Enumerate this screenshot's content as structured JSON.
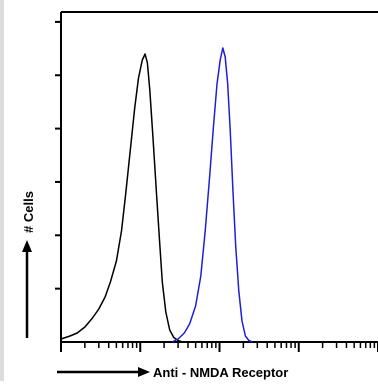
{
  "chart_data": {
    "type": "line",
    "title": "",
    "xlabel": "Anti - NMDA  Receptor",
    "ylabel": "# Cells",
    "xscale": "log",
    "xlim": [
      1,
      10000
    ],
    "ylim": [
      0,
      1
    ],
    "grid": false,
    "legend": "none",
    "series": [
      {
        "color": "#000000",
        "x": [
          1.0,
          1.3,
          1.6,
          2.0,
          2.5,
          3.0,
          3.6,
          4.2,
          5.0,
          5.8,
          6.6,
          7.5,
          8.5,
          9.5,
          10.6,
          11.5,
          12.3,
          13.2,
          14.5,
          16.0,
          17.5,
          19.0,
          21.0,
          23.5,
          26.5,
          30.0,
          34.0,
          38.0,
          42.0
        ],
        "y": [
          0.01,
          0.02,
          0.03,
          0.05,
          0.08,
          0.11,
          0.15,
          0.2,
          0.27,
          0.37,
          0.5,
          0.64,
          0.78,
          0.88,
          0.94,
          0.96,
          0.93,
          0.84,
          0.68,
          0.5,
          0.34,
          0.2,
          0.1,
          0.04,
          0.015,
          0.005,
          0.0,
          0.0,
          0.0
        ]
      },
      {
        "color": "#1f1fd6",
        "x": [
          25.0,
          30.0,
          36.0,
          42.0,
          50.0,
          58.0,
          66.0,
          75.0,
          84.0,
          93.0,
          102.0,
          110.0,
          118.0,
          127.0,
          137.0,
          148.0,
          160.0,
          175.0,
          192.0,
          212.0,
          235.0,
          260.0
        ],
        "y": [
          0.0,
          0.01,
          0.03,
          0.06,
          0.12,
          0.22,
          0.37,
          0.55,
          0.72,
          0.86,
          0.94,
          0.98,
          0.95,
          0.86,
          0.7,
          0.5,
          0.32,
          0.17,
          0.07,
          0.02,
          0.005,
          0.0
        ]
      }
    ]
  }
}
